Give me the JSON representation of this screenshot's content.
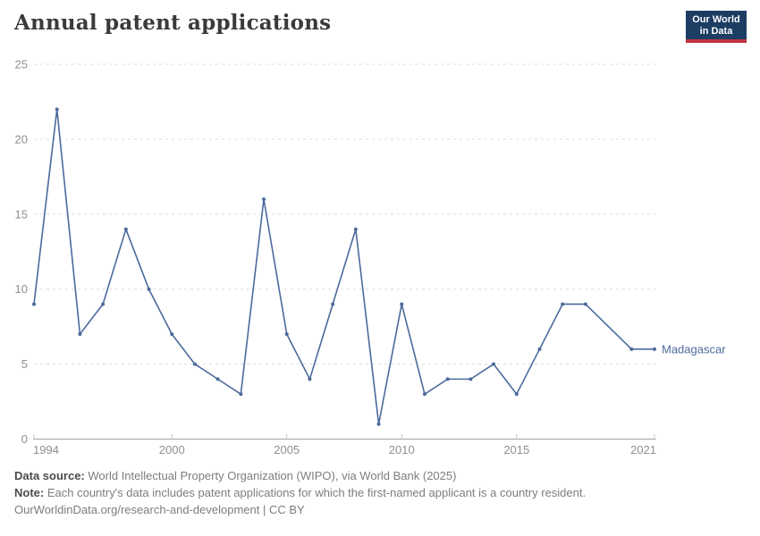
{
  "header": {
    "title": "Annual patent applications",
    "logo": {
      "line1": "Our World",
      "line2": "in Data",
      "bg_color": "#1d3d63",
      "bar_color": "#c0343f"
    }
  },
  "chart_data": {
    "type": "line",
    "title": "Annual patent applications",
    "xlabel": "",
    "ylabel": "",
    "xlim": [
      1994,
      2021
    ],
    "ylim": [
      0,
      25
    ],
    "x_ticks": [
      1994,
      2000,
      2005,
      2010,
      2015,
      2021
    ],
    "y_ticks": [
      0,
      5,
      10,
      15,
      20,
      25
    ],
    "grid": "horizontal-dashed",
    "legend_position": "end-of-line-label",
    "series": [
      {
        "name": "Madagascar",
        "color": "#4c6a9c",
        "x": [
          1994,
          1995,
          1996,
          1997,
          1998,
          1999,
          2000,
          2001,
          2002,
          2003,
          2004,
          2005,
          2006,
          2007,
          2008,
          2009,
          2010,
          2011,
          2012,
          2013,
          2014,
          2015,
          2016,
          2017,
          2018,
          2019,
          2020,
          2021
        ],
        "values": [
          9,
          22,
          7,
          9,
          14,
          10,
          7,
          5,
          4,
          3,
          16,
          7,
          4,
          9,
          14,
          1,
          9,
          3,
          4,
          4,
          5,
          3,
          6,
          9,
          9,
          null,
          6,
          6
        ]
      }
    ]
  },
  "axis_colors": {
    "tick_label": "#8f8f8f",
    "gridline": "#dcdcdc",
    "axis_line": "#a1a1a1",
    "tick_mark": "#c6c6c6"
  },
  "footer": {
    "source_label": "Data source:",
    "source_text": "World Intellectual Property Organization (WIPO), via World Bank (2025)",
    "note_label": "Note:",
    "note_text": "Each country's data includes patent applications for which the first-named applicant is a country resident.",
    "url": "OurWorldinData.org/research-and-development",
    "license": "| CC BY"
  }
}
